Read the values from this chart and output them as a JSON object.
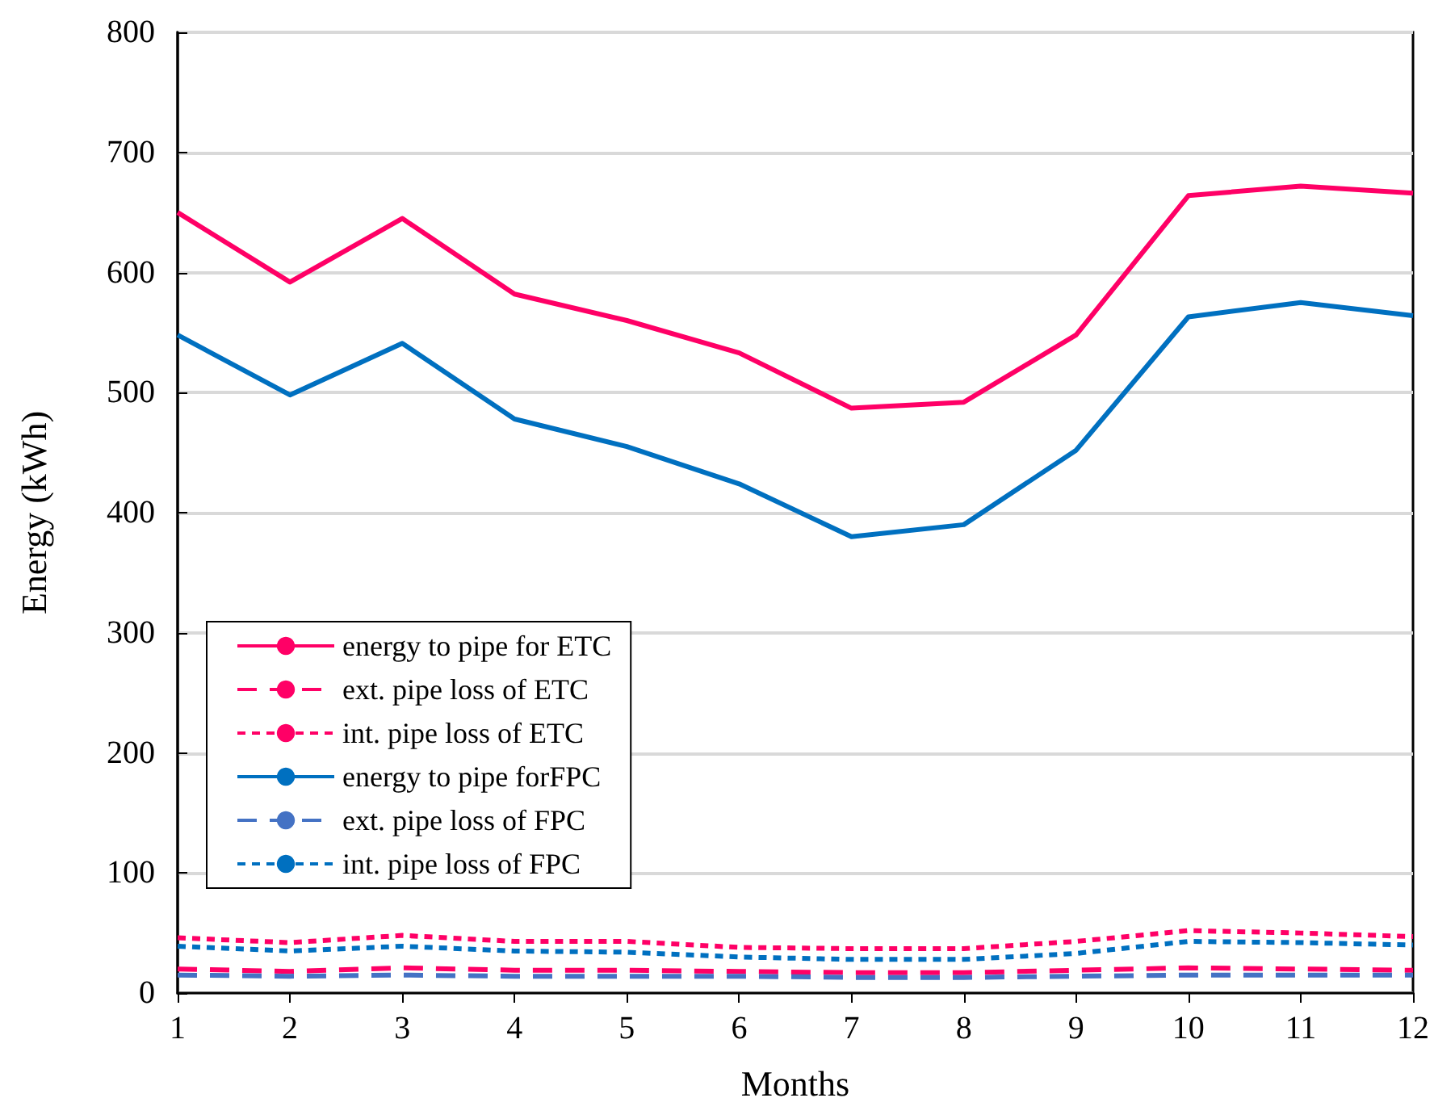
{
  "chart_data": {
    "type": "line",
    "xlabel": "Months",
    "ylabel": "Energy (kWh)",
    "x": [
      1,
      2,
      3,
      4,
      5,
      6,
      7,
      8,
      9,
      10,
      11,
      12
    ],
    "xlim": [
      1,
      12
    ],
    "xticks": [
      1,
      2,
      3,
      4,
      5,
      6,
      7,
      8,
      9,
      10,
      11,
      12
    ],
    "ylim": [
      0,
      800
    ],
    "yticks": [
      0,
      100,
      200,
      300,
      400,
      500,
      600,
      700,
      800
    ],
    "grid": "y",
    "legend": "bottom left",
    "marker": "none",
    "series": [
      {
        "name": "energy to pipe for ETC",
        "color": "#ff0066",
        "line_style": "solid",
        "values": [
          650,
          592,
          645,
          582,
          560,
          533,
          487,
          492,
          548,
          664,
          672,
          666
        ]
      },
      {
        "name": "ext. pipe loss of ETC",
        "color": "#ff0066",
        "line_style": "dashed",
        "values": [
          20,
          18,
          21,
          19,
          19,
          18,
          17,
          17,
          19,
          21,
          20,
          19
        ]
      },
      {
        "name": "int. pipe loss of ETC",
        "color": "#ff0066",
        "line_style": "dotted",
        "values": [
          46,
          42,
          48,
          43,
          43,
          38,
          37,
          37,
          43,
          52,
          50,
          47
        ]
      },
      {
        "name": "energy to pipe forFPC",
        "color": "#0070c0",
        "line_style": "solid",
        "values": [
          548,
          498,
          541,
          478,
          455,
          424,
          380,
          390,
          452,
          563,
          575,
          564
        ]
      },
      {
        "name": "ext. pipe loss of FPC",
        "color": "#4472c4",
        "line_style": "dashed",
        "values": [
          15,
          14,
          15,
          14,
          14,
          14,
          13,
          13,
          14,
          15,
          15,
          15
        ]
      },
      {
        "name": "int. pipe loss of FPC",
        "color": "#0070c0",
        "line_style": "dotted",
        "values": [
          39,
          35,
          39,
          35,
          34,
          30,
          28,
          28,
          33,
          43,
          42,
          40
        ]
      }
    ]
  }
}
